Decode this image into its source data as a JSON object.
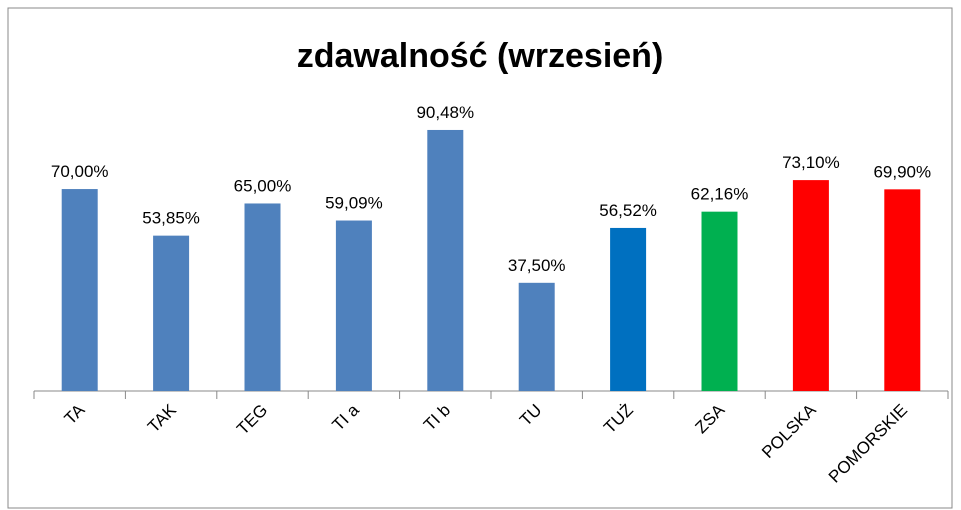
{
  "chart_data": {
    "type": "bar",
    "title": "zdawalność (wrzesień)",
    "categories": [
      "TA",
      "TAK",
      "TEG",
      "TI a",
      "TI b",
      "TU",
      "TUŻ",
      "ZSA",
      "POLSKA",
      "POMORSKIE"
    ],
    "values": [
      70.0,
      53.85,
      65.0,
      59.09,
      90.48,
      37.5,
      56.52,
      62.16,
      73.1,
      69.9
    ],
    "value_labels": [
      "70,00%",
      "53,85%",
      "65,00%",
      "59,09%",
      "90,48%",
      "37,50%",
      "56,52%",
      "62,16%",
      "73,10%",
      "69,90%"
    ],
    "colors": [
      "#4f81bd",
      "#4f81bd",
      "#4f81bd",
      "#4f81bd",
      "#4f81bd",
      "#4f81bd",
      "#0070c0",
      "#00b050",
      "#ff0000",
      "#ff0000"
    ],
    "ylim": [
      0,
      100
    ]
  }
}
